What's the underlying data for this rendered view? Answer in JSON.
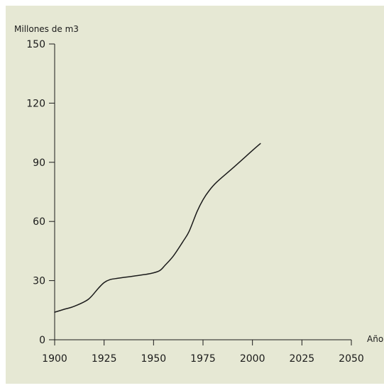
{
  "chart_data": {
    "type": "line",
    "title": "",
    "ylabel": "Millones de m3",
    "xlabel": "Año",
    "xlim": [
      1900,
      2050
    ],
    "ylim": [
      0,
      150
    ],
    "x_ticks": [
      1900,
      1925,
      1950,
      1975,
      2000,
      2025,
      2050
    ],
    "y_ticks": [
      0,
      30,
      60,
      90,
      120,
      150
    ],
    "grid": false,
    "series": [
      {
        "x": [
          1900,
          1905,
          1910,
          1917,
          1922,
          1925,
          1928,
          1932,
          1940,
          1948,
          1953,
          1956,
          1960,
          1965,
          1968,
          1972,
          1975,
          1978,
          1982,
          1990,
          2000,
          2004
        ],
        "y": [
          14,
          15.5,
          17,
          20.5,
          26,
          29,
          30.5,
          31.2,
          32.3,
          33.5,
          35,
          38,
          42.5,
          50,
          55,
          65,
          71,
          75.5,
          80,
          87,
          96,
          99.5
        ]
      }
    ]
  },
  "colors": {
    "background": "#e6e8d4",
    "line": "#1a1a1a",
    "axis": "#1a1a1a"
  }
}
